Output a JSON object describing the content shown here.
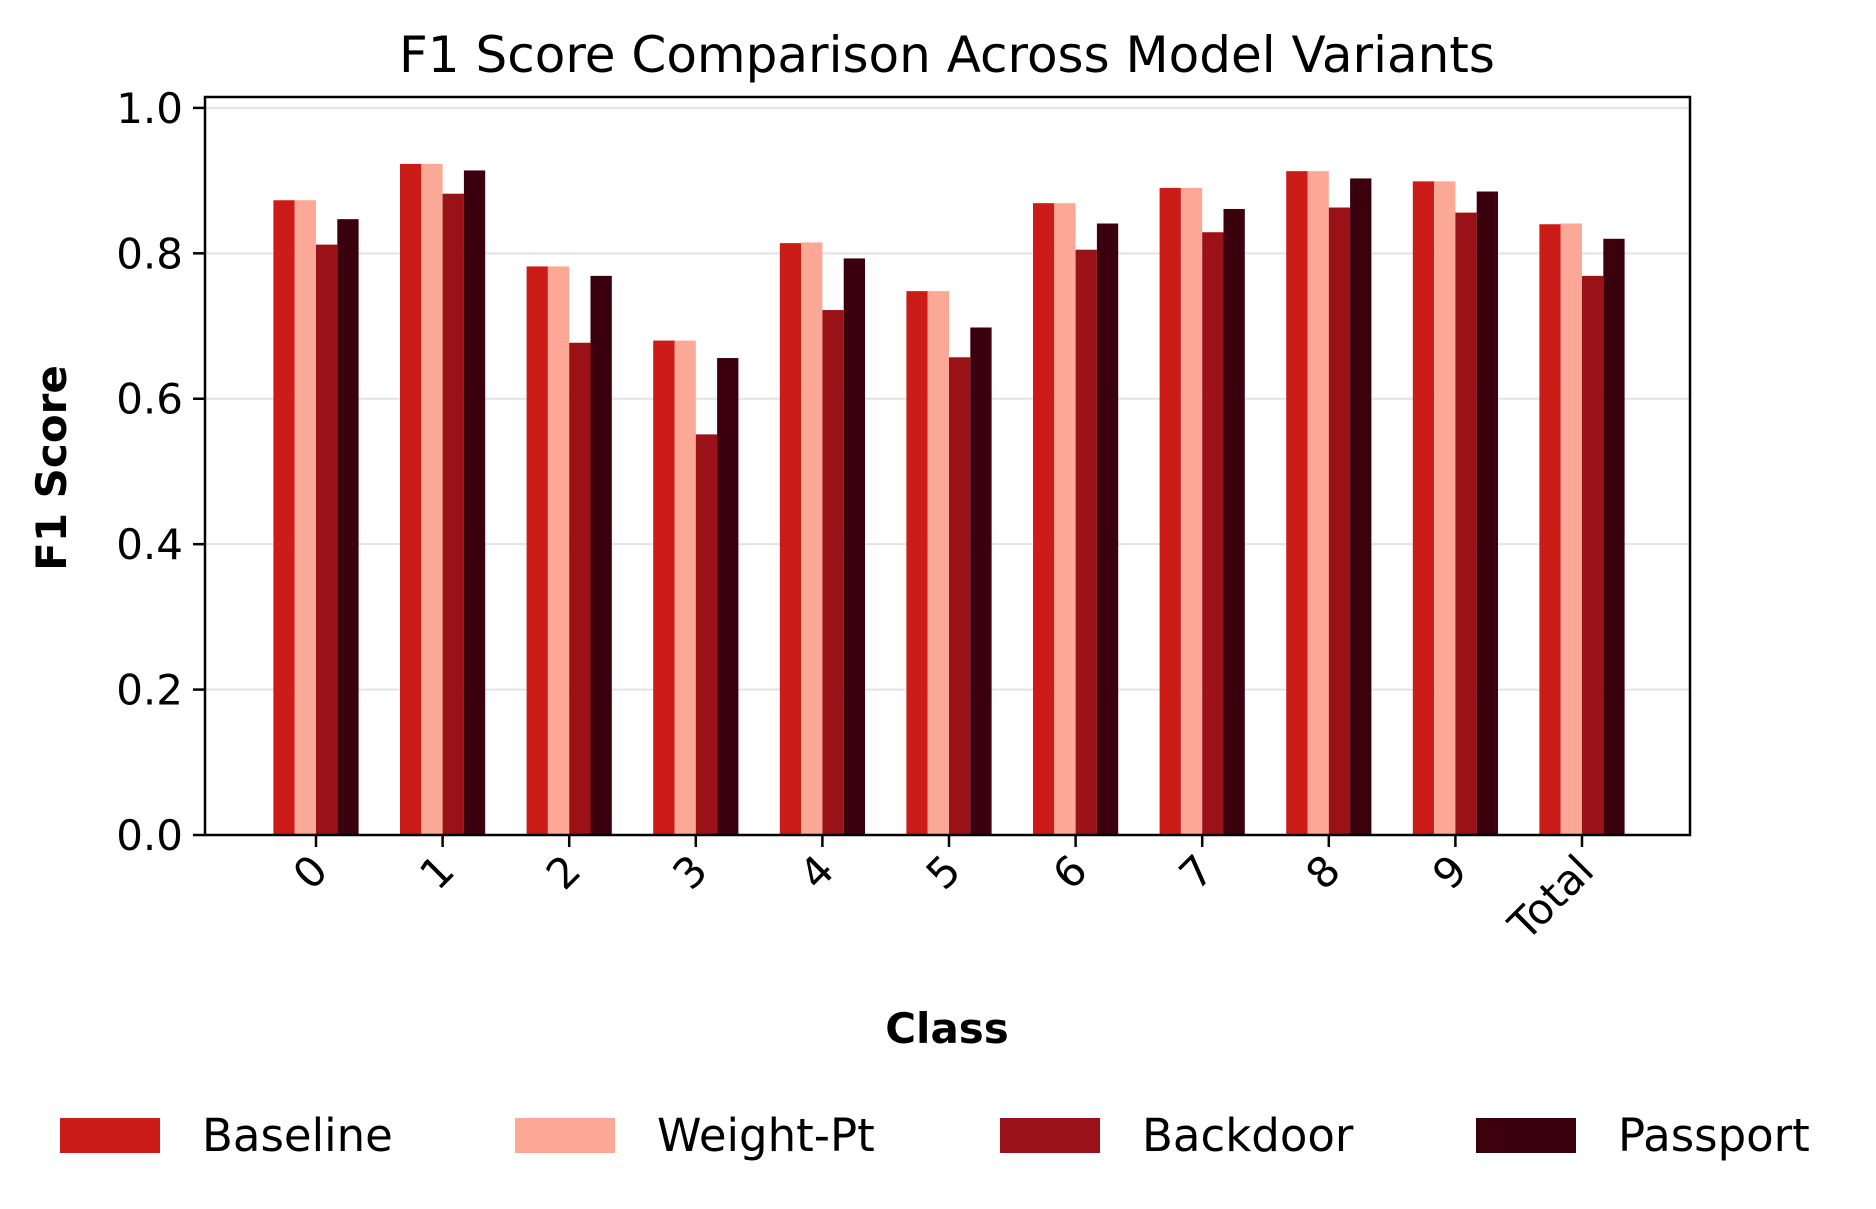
{
  "chart_data": {
    "type": "bar",
    "title": "F1 Score Comparison Across Model Variants",
    "xlabel": "Class",
    "ylabel": "F1 Score",
    "categories": [
      "0",
      "1",
      "2",
      "3",
      "4",
      "5",
      "6",
      "7",
      "8",
      "9",
      "Total"
    ],
    "ylim": [
      0.0,
      1.0
    ],
    "yticks": [
      "0.0",
      "0.2",
      "0.4",
      "0.6",
      "0.8",
      "1.0"
    ],
    "grid": "horizontal",
    "legend_position": "bottom",
    "series": [
      {
        "name": "Baseline",
        "color": "#cc1c18",
        "values": [
          0.873,
          0.923,
          0.782,
          0.68,
          0.814,
          0.748,
          0.869,
          0.89,
          0.913,
          0.899,
          0.84
        ]
      },
      {
        "name": "Weight-Pt",
        "color": "#fca896",
        "values": [
          0.873,
          0.923,
          0.782,
          0.68,
          0.815,
          0.748,
          0.869,
          0.89,
          0.913,
          0.899,
          0.841
        ]
      },
      {
        "name": "Backdoor",
        "color": "#9a1217",
        "values": [
          0.812,
          0.882,
          0.677,
          0.551,
          0.722,
          0.657,
          0.805,
          0.829,
          0.863,
          0.856,
          0.769
        ]
      },
      {
        "name": "Passport",
        "color": "#3b000d",
        "values": [
          0.847,
          0.914,
          0.769,
          0.656,
          0.793,
          0.698,
          0.841,
          0.861,
          0.903,
          0.885,
          0.82
        ]
      }
    ]
  }
}
